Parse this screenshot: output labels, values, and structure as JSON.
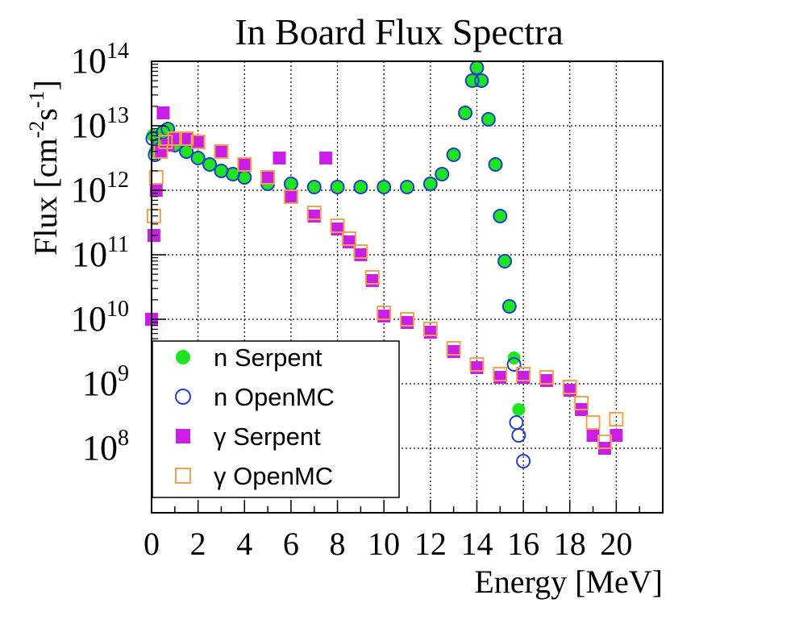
{
  "chart_data": {
    "type": "scatter",
    "title": "In Board Flux Spectra",
    "xlabel": "Energy [MeV]",
    "ylabel": {
      "main": "Flux [cm",
      "sup1": "-2",
      "mid": "s",
      "sup2": "-1",
      "end": "]"
    },
    "xlim": [
      0,
      22
    ],
    "ylim_log10": [
      7,
      14
    ],
    "grid": true,
    "log_y": true,
    "x_ticks": [
      "0",
      "2",
      "4",
      "6",
      "8",
      "10",
      "12",
      "14",
      "16",
      "18",
      "20"
    ],
    "y_ticks": [
      {
        "base": "10",
        "exp": "14"
      },
      {
        "base": "10",
        "exp": "13"
      },
      {
        "base": "10",
        "exp": "12"
      },
      {
        "base": "10",
        "exp": "11"
      },
      {
        "base": "10",
        "exp": "10"
      },
      {
        "base": "10",
        "exp": "9"
      },
      {
        "base": "10",
        "exp": "8"
      }
    ],
    "legend_position": "bottom-left",
    "series": [
      {
        "name": "n Serpent",
        "marker": "filled-circle",
        "color": "#1ee61e",
        "x": [
          0.05,
          0.15,
          0.3,
          0.5,
          0.7,
          1.0,
          1.5,
          2.0,
          2.5,
          3.0,
          3.5,
          4.0,
          5.0,
          6.0,
          7.0,
          8.0,
          9.0,
          10.0,
          11.0,
          12.0,
          12.5,
          13.0,
          13.5,
          13.8,
          14.0,
          14.2,
          14.5,
          14.8,
          15.0,
          15.2,
          15.4,
          15.6,
          15.8
        ],
        "log10_y": [
          12.85,
          12.6,
          12.75,
          12.9,
          12.95,
          12.7,
          12.6,
          12.5,
          12.4,
          12.3,
          12.25,
          12.2,
          12.1,
          12.1,
          12.05,
          12.05,
          12.05,
          12.05,
          12.05,
          12.1,
          12.25,
          12.55,
          13.2,
          13.7,
          13.9,
          13.7,
          13.1,
          12.4,
          11.6,
          10.9,
          10.2,
          9.4,
          8.6
        ]
      },
      {
        "name": "n OpenMC",
        "marker": "open-circle",
        "color": "#1f3fcf",
        "x": [
          0.05,
          0.15,
          0.3,
          0.5,
          0.7,
          1.0,
          1.5,
          2.0,
          2.5,
          3.0,
          3.5,
          4.0,
          5.0,
          6.0,
          7.0,
          8.0,
          9.0,
          10.0,
          11.0,
          12.0,
          12.5,
          13.0,
          13.5,
          13.8,
          14.0,
          14.2,
          14.5,
          14.8,
          15.0,
          15.2,
          15.4,
          15.6,
          15.7,
          15.8,
          16.0
        ],
        "log10_y": [
          12.8,
          12.55,
          12.7,
          12.9,
          12.95,
          12.7,
          12.6,
          12.5,
          12.4,
          12.3,
          12.25,
          12.2,
          12.1,
          12.1,
          12.05,
          12.05,
          12.05,
          12.05,
          12.05,
          12.1,
          12.25,
          12.55,
          13.2,
          13.7,
          13.9,
          13.7,
          13.1,
          12.4,
          11.6,
          10.9,
          10.2,
          9.3,
          8.4,
          8.2,
          7.8
        ]
      },
      {
        "name": "γ Serpent",
        "marker": "filled-square",
        "color": "#c81ee6",
        "x": [
          0.0,
          0.1,
          0.2,
          0.4,
          0.5,
          0.7,
          1.0,
          1.5,
          2.0,
          3.0,
          4.0,
          5.0,
          5.5,
          6.0,
          7.0,
          7.5,
          8.0,
          8.5,
          9.0,
          9.5,
          10.0,
          11.0,
          12.0,
          13.0,
          14.0,
          15.0,
          16.0,
          17.0,
          18.0,
          18.5,
          19.0,
          19.5,
          20.0
        ],
        "log10_y": [
          10.0,
          11.3,
          12.0,
          12.6,
          13.2,
          12.7,
          12.8,
          12.8,
          12.75,
          12.6,
          12.4,
          12.2,
          12.5,
          11.9,
          11.6,
          12.5,
          11.4,
          11.2,
          11.0,
          10.6,
          10.05,
          9.95,
          9.8,
          9.5,
          9.25,
          9.1,
          9.1,
          9.05,
          8.9,
          8.6,
          8.2,
          8.0,
          8.2
        ]
      },
      {
        "name": "γ OpenMC",
        "marker": "open-square",
        "color": "#f5a050",
        "x": [
          0.1,
          0.2,
          0.4,
          0.6,
          1.0,
          1.5,
          2.0,
          3.0,
          4.0,
          5.0,
          6.0,
          7.0,
          8.0,
          8.5,
          9.0,
          9.5,
          10.0,
          11.0,
          12.0,
          13.0,
          14.0,
          15.0,
          16.0,
          17.0,
          18.0,
          18.5,
          19.0,
          19.5,
          20.0
        ],
        "log10_y": [
          11.6,
          12.2,
          12.6,
          12.75,
          12.8,
          12.8,
          12.75,
          12.6,
          12.4,
          12.2,
          11.9,
          11.65,
          11.45,
          11.25,
          11.05,
          10.65,
          10.1,
          10.0,
          9.85,
          9.55,
          9.3,
          9.15,
          9.15,
          9.1,
          8.95,
          8.7,
          8.4,
          8.1,
          8.45
        ]
      }
    ]
  }
}
